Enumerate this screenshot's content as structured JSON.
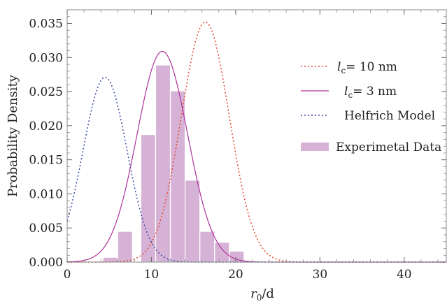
{
  "chart_data": {
    "type": "bar",
    "xlabel": "r0/d",
    "xlabel_main": "r",
    "xlabel_sub": "0",
    "xlabel_rest": "/d",
    "ylabel": "Probability Density",
    "xlim": [
      0,
      45
    ],
    "ylim": [
      0,
      0.037
    ],
    "x_ticks": [
      0,
      10,
      20,
      30,
      40
    ],
    "x_tick_labels": [
      "0",
      "10",
      "20",
      "30",
      "40"
    ],
    "y_ticks": [
      0,
      0.005,
      0.01,
      0.015,
      0.02,
      0.025,
      0.03,
      0.035
    ],
    "y_tick_labels": [
      "0.000",
      "0.005",
      "0.010",
      "0.015",
      "0.020",
      "0.025",
      "0.030",
      "0.035"
    ],
    "grid": false,
    "legend_position": "right",
    "histogram": {
      "name": "Experimetal Data",
      "color": "#d6b3d6",
      "bin_width": 1.75,
      "bins": [
        {
          "x0": 4.25,
          "value": 0.0007
        },
        {
          "x0": 6.0,
          "value": 0.0045
        },
        {
          "x0": 7.75,
          "value": 0.0
        },
        {
          "x0": 8.75,
          "value": 0.0187
        },
        {
          "x0": 10.5,
          "value": 0.0289
        },
        {
          "x0": 12.25,
          "value": 0.0251
        },
        {
          "x0": 14.0,
          "value": 0.012
        },
        {
          "x0": 15.75,
          "value": 0.0045
        },
        {
          "x0": 17.5,
          "value": 0.0029
        },
        {
          "x0": 19.25,
          "value": 0.0016
        }
      ]
    },
    "series": [
      {
        "name": "l_c= 10 nm",
        "label_main": "l",
        "label_sub": "c",
        "label_rest": "= 10 nm",
        "style": "dotted",
        "color": "#e8442e",
        "peak_x": 16.4,
        "peak_y": 0.0352,
        "sigma": 2.85
      },
      {
        "name": "l_c= 3 nm",
        "label_main": "l",
        "label_sub": "c",
        "label_rest": "= 3 nm",
        "style": "solid",
        "color": "#b0319b",
        "peak_x": 11.3,
        "peak_y": 0.0309,
        "sigma": 3.0
      },
      {
        "name": "Helfrich Model",
        "label_main": "Helfrich Model",
        "style": "dotted",
        "color": "#3a4aa6",
        "peak_x": 4.5,
        "peak_y": 0.0271,
        "sigma": 2.6
      }
    ]
  }
}
